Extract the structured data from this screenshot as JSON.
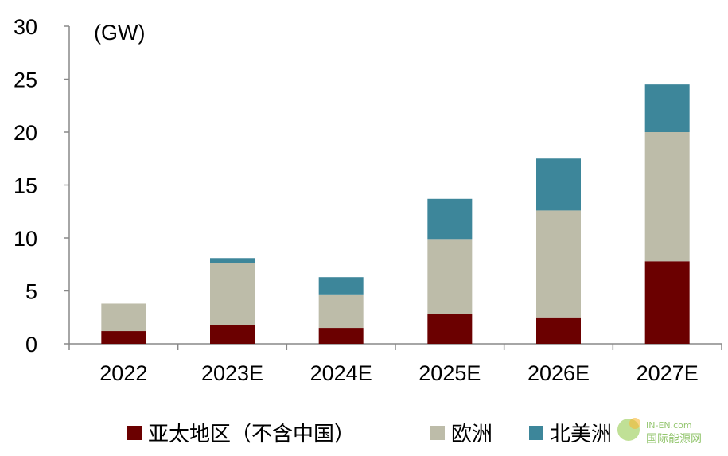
{
  "chart_data": {
    "type": "bar",
    "stacked": true,
    "unit_label": "(GW)",
    "categories": [
      "2022",
      "2023E",
      "2024E",
      "2025E",
      "2026E",
      "2027E"
    ],
    "series": [
      {
        "name": "亚太地区（不含中国）",
        "color": "#6B0000",
        "values": [
          1.2,
          1.8,
          1.5,
          2.8,
          2.5,
          7.8
        ]
      },
      {
        "name": "欧洲",
        "color": "#BDBCA9",
        "values": [
          2.6,
          5.8,
          3.1,
          7.1,
          10.1,
          12.2
        ]
      },
      {
        "name": "北美洲",
        "color": "#3D869A",
        "values": [
          0.0,
          0.5,
          1.7,
          3.8,
          4.9,
          4.5
        ]
      }
    ],
    "ylim": [
      0,
      30
    ],
    "yticks": [
      0,
      5,
      10,
      15,
      20,
      25,
      30
    ],
    "grid": false,
    "legend_position": "bottom"
  },
  "watermark": {
    "line1": "IN-EN.com",
    "line2": "国际能源网"
  }
}
